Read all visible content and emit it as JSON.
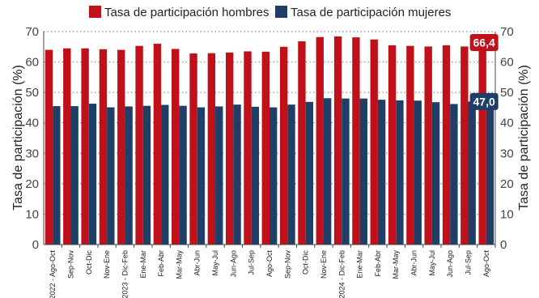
{
  "colors": {
    "hombres": "#c0111b",
    "mujeres": "#1f3f66",
    "grid": "#9a9a9a",
    "axis": "#444444"
  },
  "chart_data": {
    "type": "bar",
    "categories": [
      "2022 - Ago-Oct",
      "Sep-Nov",
      "Oct-Dic",
      "Nov-Ene",
      "2023 - Dic-Feb",
      "Ene-Mar",
      "Feb-Abr",
      "Mar-May",
      "Abr-Jun",
      "May-Jul",
      "Jun-Ago",
      "Jul-Sep",
      "Ago-Oct",
      "Sep-Nov",
      "Oct-Dic",
      "Nov-Ene",
      "2024 - Dic-Feb",
      "Ene-Mar",
      "Feb-Abr",
      "Mar-May",
      "Abr-Jun",
      "May-Jul",
      "Jun-Ago",
      "Jul-Sep",
      "Ago-Oct"
    ],
    "series": [
      {
        "name": "Tasa de participación hombres",
        "values": [
          64.0,
          64.5,
          64.5,
          64.2,
          64.0,
          65.3,
          66.0,
          64.3,
          62.8,
          62.9,
          63.1,
          63.5,
          63.4,
          65.0,
          66.8,
          68.2,
          68.4,
          68.1,
          67.4,
          65.5,
          65.3,
          65.1,
          65.5,
          65.1,
          66.4
        ]
      },
      {
        "name": "Tasa de participación mujeres",
        "values": [
          45.5,
          45.5,
          46.3,
          45.1,
          45.4,
          45.6,
          45.9,
          45.6,
          45.1,
          45.4,
          46.0,
          45.3,
          45.1,
          46.0,
          46.9,
          48.1,
          48.0,
          48.0,
          47.6,
          47.4,
          47.3,
          46.8,
          46.2,
          47.0,
          47.0
        ]
      }
    ],
    "ylabel": "Tasa de participación (%)",
    "ylabel_right": "Tasa de participación (%)",
    "ylim": [
      0,
      70
    ],
    "yticks": [
      0,
      10,
      20,
      30,
      40,
      50,
      60,
      70
    ],
    "grid": true,
    "legend_position": "top",
    "callouts": [
      {
        "label": "66,4",
        "series": 0
      },
      {
        "label": "47,0",
        "series": 1
      }
    ]
  }
}
